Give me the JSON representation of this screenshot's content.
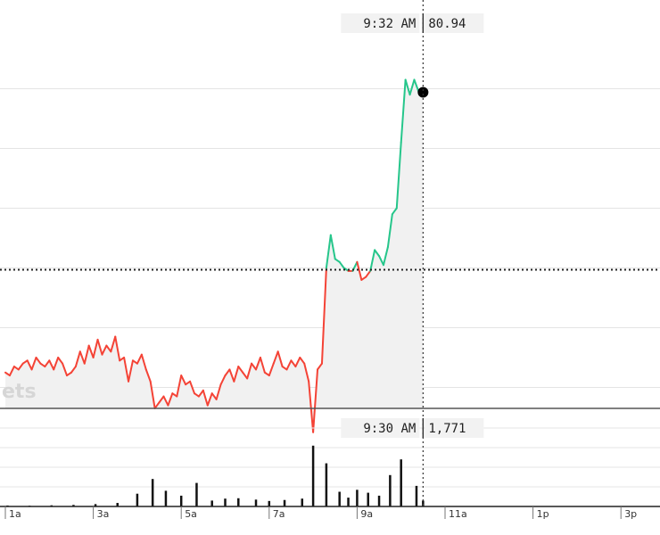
{
  "chart_data": [
    {
      "type": "line",
      "title": "",
      "x_label": "",
      "y_label": "",
      "watermark": "ets",
      "crosshair": {
        "time": "9:32 AM",
        "value": "80.94"
      },
      "baseline_value": 77.97,
      "ylim": [
        75.5,
        81.5
      ],
      "gridlines": [
        76,
        77,
        78,
        79,
        80,
        81
      ],
      "colors": {
        "below": "#f44336",
        "above": "#26c68b",
        "area": "#f1f1f1",
        "marker": "#000000"
      },
      "x_hours": [
        0.0,
        0.1,
        0.2,
        0.3,
        0.4,
        0.5,
        0.6,
        0.7,
        0.8,
        0.9,
        1.0,
        1.1,
        1.2,
        1.3,
        1.4,
        1.5,
        1.6,
        1.7,
        1.8,
        1.9,
        2.0,
        2.1,
        2.2,
        2.3,
        2.4,
        2.5,
        2.6,
        2.7,
        2.8,
        2.9,
        3.0,
        3.1,
        3.2,
        3.3,
        3.4,
        3.5,
        3.6,
        3.7,
        3.8,
        3.9,
        4.0,
        4.1,
        4.2,
        4.3,
        4.4,
        4.5,
        4.6,
        4.7,
        4.8,
        4.9,
        5.0,
        5.1,
        5.2,
        5.3,
        5.4,
        5.5,
        5.6,
        5.7,
        5.8,
        5.9,
        6.0,
        6.1,
        6.2,
        6.3,
        6.4,
        6.5,
        6.6,
        6.7,
        6.8,
        6.9,
        7.0,
        7.1,
        7.2,
        7.3,
        7.4,
        7.5,
        7.6,
        7.7,
        7.8,
        7.9,
        8.0,
        8.1,
        8.2,
        8.3,
        8.4,
        8.5,
        8.6,
        8.7,
        8.8,
        8.9,
        9.0,
        9.1,
        9.2,
        9.3,
        9.4,
        9.5
      ],
      "values": [
        76.25,
        76.2,
        76.35,
        76.3,
        76.4,
        76.45,
        76.3,
        76.5,
        76.4,
        76.35,
        76.45,
        76.3,
        76.5,
        76.4,
        76.2,
        76.25,
        76.35,
        76.6,
        76.4,
        76.7,
        76.5,
        76.8,
        76.55,
        76.7,
        76.6,
        76.85,
        76.45,
        76.5,
        76.1,
        76.45,
        76.4,
        76.55,
        76.3,
        76.1,
        75.65,
        75.75,
        75.85,
        75.7,
        75.9,
        75.85,
        76.2,
        76.05,
        76.1,
        75.9,
        75.85,
        75.95,
        75.7,
        75.9,
        75.8,
        76.05,
        76.2,
        76.3,
        76.1,
        76.35,
        76.25,
        76.15,
        76.4,
        76.3,
        76.5,
        76.25,
        76.2,
        76.4,
        76.6,
        76.35,
        76.3,
        76.45,
        76.35,
        76.5,
        76.4,
        76.1,
        75.25,
        76.3,
        76.4,
        78.0,
        78.55,
        78.15,
        78.1,
        78.0,
        77.95,
        77.95,
        78.1,
        77.8,
        77.85,
        77.95,
        78.3,
        78.2,
        78.05,
        78.35,
        78.9,
        79.0,
        80.1,
        81.15,
        80.9,
        81.15,
        80.95,
        80.94
      ]
    },
    {
      "type": "bar",
      "title": "",
      "crosshair": {
        "time": "9:30 AM",
        "value": "1,771"
      },
      "ylim": [
        0,
        4000
      ],
      "gridlines": [
        1000,
        2000,
        3000,
        4000
      ],
      "x_ticks": [
        "1a",
        "3a",
        "5a",
        "7a",
        "9a",
        "11a",
        "1p",
        "3p"
      ],
      "x_hours": [
        0.05,
        0.55,
        1.05,
        1.55,
        2.05,
        2.55,
        3.0,
        3.35,
        3.65,
        4.0,
        4.35,
        4.7,
        5.0,
        5.3,
        5.7,
        6.0,
        6.35,
        6.75,
        7.0,
        7.3,
        7.6,
        7.8,
        8.0,
        8.25,
        8.5,
        8.75,
        9.0,
        9.35,
        9.5
      ],
      "values": [
        50,
        40,
        60,
        80,
        120,
        180,
        650,
        1400,
        800,
        550,
        1200,
        300,
        400,
        420,
        350,
        280,
        330,
        400,
        3100,
        2200,
        750,
        450,
        850,
        700,
        550,
        1600,
        2400,
        1050,
        300
      ]
    }
  ]
}
